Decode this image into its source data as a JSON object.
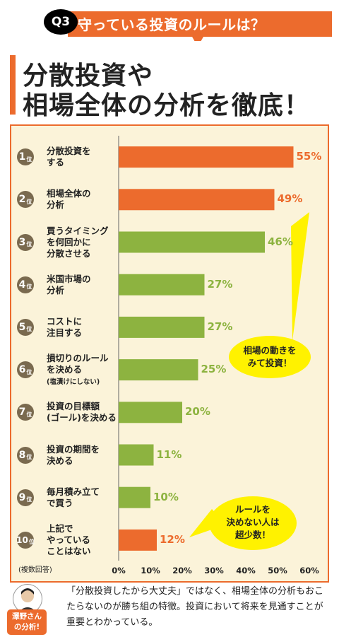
{
  "header": {
    "q_badge": "Q3",
    "question": "守っている投資のルールは？",
    "headline_line1": "分散投資や",
    "headline_line2": "相場全体の分析を徹底！"
  },
  "chart_data": {
    "type": "bar",
    "orientation": "horizontal",
    "categories": [
      "分散投資を\nする",
      "相場全体の\n分析",
      "買うタイミング\nを何回かに\n分散させる",
      "米国市場の\n分析",
      "コストに\n注目する",
      "損切りのルール\nを決める",
      "投資の目標額\n(ゴール)を決める",
      "投資の期間を\n決める",
      "毎月積み立て\nで買う",
      "上記で\nやっている\nことはない"
    ],
    "category_notes": [
      "",
      "",
      "",
      "",
      "",
      "(塩漬けにしない)",
      "",
      "",
      "",
      ""
    ],
    "ranks": [
      "1",
      "2",
      "3",
      "4",
      "5",
      "6",
      "7",
      "8",
      "9",
      "10"
    ],
    "rank_suffix": "位",
    "values": [
      55,
      49,
      46,
      27,
      27,
      25,
      20,
      11,
      10,
      12
    ],
    "value_labels": [
      "55%",
      "49%",
      "46%",
      "27%",
      "27%",
      "25%",
      "20%",
      "11%",
      "10%",
      "12%"
    ],
    "bar_colors": [
      "#ec6b2d",
      "#ec6b2d",
      "#8db340",
      "#8db340",
      "#8db340",
      "#8db340",
      "#8db340",
      "#8db340",
      "#8db340",
      "#ec6b2d"
    ],
    "xlim": [
      0,
      60
    ],
    "xticks": [
      "0%",
      "10%",
      "20%",
      "30%",
      "40%",
      "50%",
      "60%"
    ],
    "annotations": [
      "相場の動きを\nみて投資！",
      "ルールを\n決めない人は\n超少数！"
    ],
    "note": "(複数回答)"
  },
  "colors": {
    "accent_orange": "#ec6b2d",
    "green": "#8db340",
    "bubble_yellow": "#fff200",
    "panel_bg": "#fbf3d9"
  },
  "footer": {
    "analyst_tag": "澤野さん\nの分析!",
    "comment": "「分散投資したから大丈夫」ではなく、相場全体の分析もおこたらないのが勝ち組の特徴。投資において将来を見通すことが重要とわかっている。"
  }
}
